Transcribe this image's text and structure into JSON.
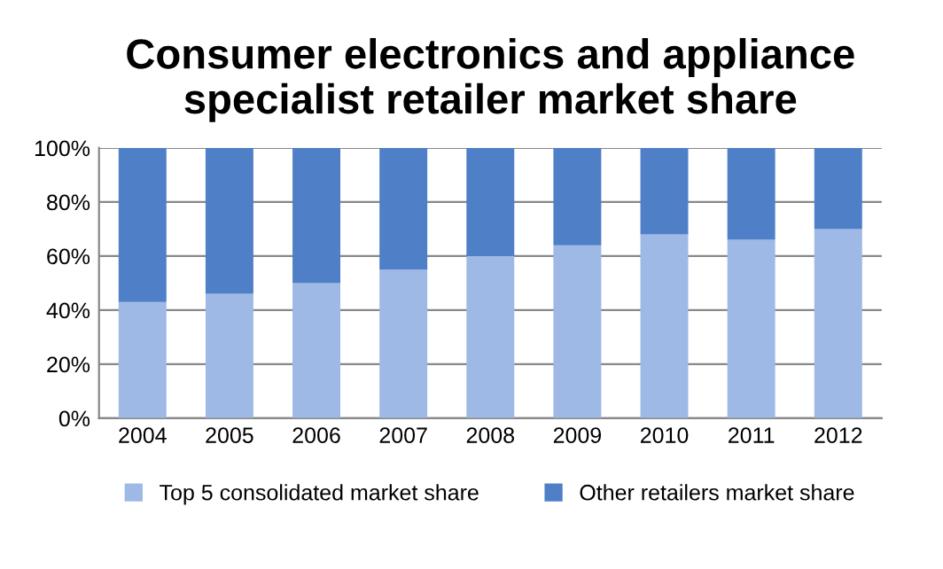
{
  "chart_data": {
    "type": "bar",
    "title": "Consumer electronics and appliance\nspecialist retailer market share",
    "categories": [
      "2004",
      "2005",
      "2006",
      "2007",
      "2008",
      "2009",
      "2010",
      "2011",
      "2012"
    ],
    "stacked": true,
    "series": [
      {
        "name": "Top 5 consolidated market share",
        "color": "#9fb9e6",
        "values": [
          43,
          46,
          50,
          55,
          60,
          64,
          68,
          66,
          70
        ]
      },
      {
        "name": "Other retailers market share",
        "color": "#4f7fc6",
        "values": [
          57,
          54,
          50,
          45,
          40,
          36,
          32,
          34,
          30
        ]
      }
    ],
    "ylim": [
      0,
      100
    ],
    "yticks": [
      {
        "value": 0,
        "label": "0%"
      },
      {
        "value": 20,
        "label": "20%"
      },
      {
        "value": 40,
        "label": "40%"
      },
      {
        "value": 60,
        "label": "60%"
      },
      {
        "value": 80,
        "label": "80%"
      },
      {
        "value": 100,
        "label": "100%"
      }
    ],
    "grid": "y",
    "legend": "bottom"
  }
}
